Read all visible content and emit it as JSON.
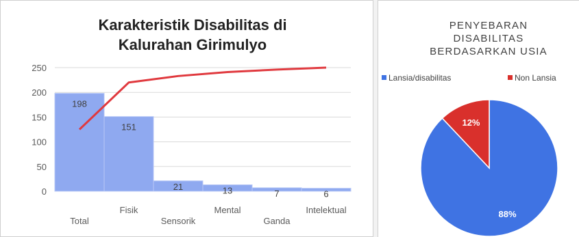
{
  "chart_data": [
    {
      "type": "bar",
      "title_lines": [
        "Karakteristik Disabilitas di",
        "Kalurahan Girimulyo"
      ],
      "categories": [
        "Total",
        "Fisik",
        "Sensorik",
        "Mental",
        "Ganda",
        "Intelektual"
      ],
      "values": [
        198,
        151,
        21,
        13,
        7,
        6
      ],
      "data_labels": [
        "198",
        "151",
        "21",
        "13",
        "7",
        "6"
      ],
      "line_series": [
        125,
        220,
        233,
        241,
        246,
        250
      ],
      "ylim": [
        0,
        250
      ],
      "yticks": [
        "0",
        "50",
        "100",
        "150",
        "200",
        "250"
      ],
      "grid": true,
      "colors": {
        "bar": "#8fa9f0",
        "bar_edge": "#b8c8f6",
        "line": "#e0393e"
      }
    },
    {
      "type": "pie",
      "title_lines": [
        "PENYEBARAN",
        "DISABILITAS",
        "BERDASARKAN USIA"
      ],
      "legend_position": "top",
      "slices": [
        {
          "label": "Lansia/disabilitas",
          "value": 88,
          "text": "88%",
          "color": "#3f73e3"
        },
        {
          "label": "Non Lansia",
          "value": 12,
          "text": "12%",
          "color": "#d9302c"
        }
      ]
    }
  ]
}
